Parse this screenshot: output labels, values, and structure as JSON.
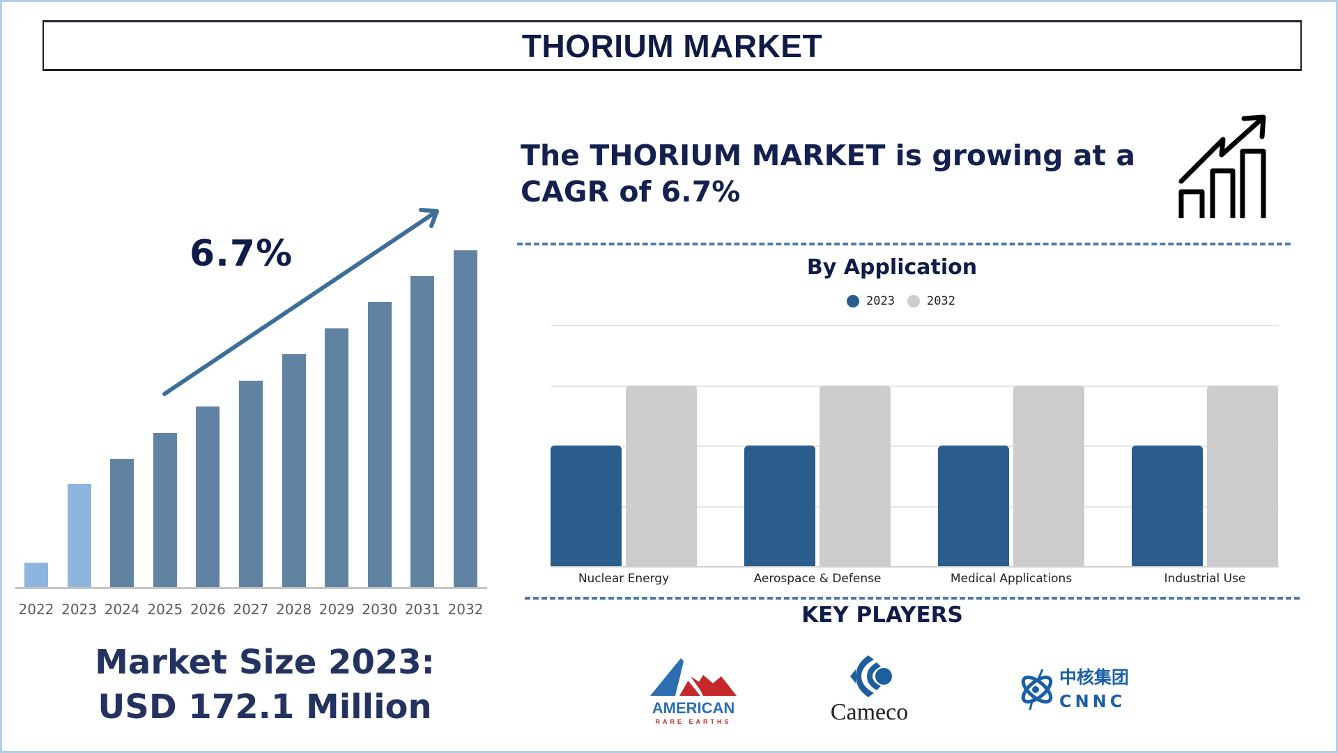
{
  "header": {
    "title": "THORIUM MARKET"
  },
  "left_panel": {
    "cagr_label": "6.7%",
    "market_size_line1": "Market Size 2023:",
    "market_size_line2": "USD 172.1 Million"
  },
  "right_panel": {
    "headline_line1": "The THORIUM MARKET is growing at a",
    "headline_line2": "CAGR of 6.7%",
    "growth_icon": "bar-chart-growth-arrow-icon",
    "application_chart_title": "By Application",
    "legend": [
      {
        "label": "2023",
        "color": "#2a5d8c"
      },
      {
        "label": "2032",
        "color": "#cccccc"
      }
    ],
    "key_players_title": "KEY PLAYERS",
    "key_players": [
      {
        "name": "American Rare Earths",
        "wordmark": "AMERICAN",
        "subtitle": "RARE EARTHS"
      },
      {
        "name": "Cameco",
        "wordmark": "Cameco"
      },
      {
        "name": "CNNC",
        "wordmark": "CNNC",
        "chinese": "中核集团"
      }
    ]
  },
  "colors": {
    "navy_text": "#121c48",
    "bar_forecast": "#6083a3",
    "bar_historical": "#8db5de",
    "arrow": "#3d6e99",
    "series_2023": "#2a5d8c",
    "series_2032": "#cccccc",
    "dash": "#4d7aa6",
    "frame": "#b3cfe6"
  },
  "chart_data": [
    {
      "type": "bar",
      "title": "Thorium Market Size (relative)",
      "categories": [
        "2022",
        "2023",
        "2024",
        "2025",
        "2026",
        "2027",
        "2028",
        "2029",
        "2030",
        "2031",
        "2032"
      ],
      "values": [
        36,
        149,
        185,
        222,
        260,
        297,
        335,
        372,
        410,
        447,
        484
      ],
      "value_units": "relative bar height (px), no axis shown",
      "highlighted_historical": [
        "2022",
        "2023"
      ],
      "annotation": "6.7% (CAGR arrow)",
      "xlabel": "",
      "ylabel": "",
      "grid": false
    },
    {
      "type": "bar",
      "title": "By Application",
      "categories": [
        "Nuclear Energy",
        "Aerospace & Defense",
        "Medical Applications",
        "Industrial Use"
      ],
      "series": [
        {
          "name": "2023",
          "values": [
            2,
            2,
            2,
            2
          ]
        },
        {
          "name": "2032",
          "values": [
            3,
            3,
            3,
            3
          ]
        }
      ],
      "ylim": [
        0,
        4
      ],
      "grid": true,
      "legend_position": "top",
      "xlabel": "",
      "ylabel": ""
    }
  ]
}
